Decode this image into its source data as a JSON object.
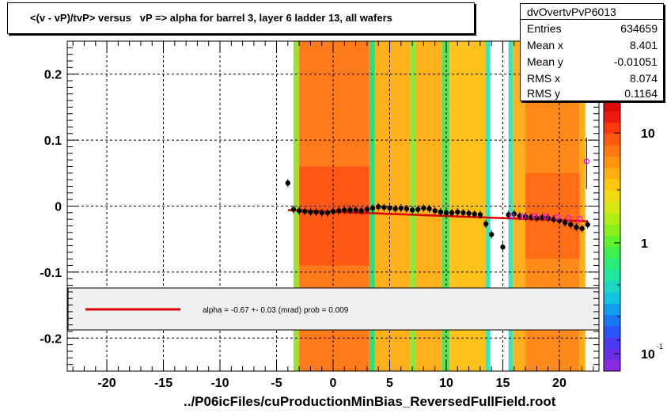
{
  "title": "<(v - vP)/tvP> versus   vP => alpha for barrel 3, layer 6 ladder 13, all wafers",
  "xlabel": "../P06icFiles/cuProductionMinBias_ReversedFullField.root",
  "stats": {
    "name": "dvOvertvPvP6013",
    "rows": [
      {
        "label": "Entries",
        "value": "634659"
      },
      {
        "label": "Mean x",
        "value": "8.401"
      },
      {
        "label": "Mean y",
        "value": "-0.01051"
      },
      {
        "label": "RMS x",
        "value": "8.074"
      },
      {
        "label": "RMS y",
        "value": "0.1164"
      }
    ]
  },
  "legend_text": "alpha =   -0.67 +-  0.03 (mrad) prob = 0.009",
  "colorbar_ticks": [
    "10",
    "1",
    "10"
  ],
  "colorbar_tick_exponent": "-1",
  "colors": {
    "fit_line": "#dd0000",
    "points": "#000000",
    "open_marker": "#ff00ff"
  },
  "chart_data": {
    "type": "scatter",
    "x_ticks": [
      "-20",
      "-15",
      "-10",
      "-5",
      "0",
      "5",
      "10",
      "15",
      "20"
    ],
    "y_ticks": [
      "0.2",
      "0.1",
      "0",
      "-0.1",
      "-0.2"
    ],
    "xlim": [
      -23.5,
      23.5
    ],
    "ylim": [
      -0.25,
      0.25
    ],
    "grid": true,
    "logz": true,
    "profile_points": [
      {
        "x": -4.0,
        "y": 0.035
      },
      {
        "x": -3.5,
        "y": -0.005
      },
      {
        "x": -3.0,
        "y": -0.007
      },
      {
        "x": -2.5,
        "y": -0.008
      },
      {
        "x": -2.0,
        "y": -0.009
      },
      {
        "x": -1.5,
        "y": -0.009
      },
      {
        "x": -1.0,
        "y": -0.01
      },
      {
        "x": -0.5,
        "y": -0.01
      },
      {
        "x": 0.0,
        "y": -0.008
      },
      {
        "x": 0.5,
        "y": -0.007
      },
      {
        "x": 1.0,
        "y": -0.006
      },
      {
        "x": 1.5,
        "y": -0.006
      },
      {
        "x": 2.0,
        "y": -0.006
      },
      {
        "x": 2.5,
        "y": -0.007
      },
      {
        "x": 3.0,
        "y": -0.005
      },
      {
        "x": 3.5,
        "y": -0.003
      },
      {
        "x": 4.0,
        "y": -0.001
      },
      {
        "x": 4.5,
        "y": -0.002
      },
      {
        "x": 5.0,
        "y": -0.003
      },
      {
        "x": 5.5,
        "y": -0.004
      },
      {
        "x": 6.0,
        "y": -0.003
      },
      {
        "x": 6.5,
        "y": -0.004
      },
      {
        "x": 7.0,
        "y": -0.006
      },
      {
        "x": 7.5,
        "y": -0.005
      },
      {
        "x": 8.0,
        "y": -0.003
      },
      {
        "x": 8.5,
        "y": -0.004
      },
      {
        "x": 9.0,
        "y": -0.007
      },
      {
        "x": 9.5,
        "y": -0.009
      },
      {
        "x": 10.0,
        "y": -0.01
      },
      {
        "x": 10.5,
        "y": -0.01
      },
      {
        "x": 11.0,
        "y": -0.009
      },
      {
        "x": 11.5,
        "y": -0.01
      },
      {
        "x": 12.0,
        "y": -0.011
      },
      {
        "x": 12.5,
        "y": -0.012
      },
      {
        "x": 13.0,
        "y": -0.013
      },
      {
        "x": 13.5,
        "y": -0.027
      },
      {
        "x": 14.0,
        "y": -0.043
      },
      {
        "x": 15.0,
        "y": -0.062
      },
      {
        "x": 15.5,
        "y": -0.013
      },
      {
        "x": 16.0,
        "y": -0.012
      },
      {
        "x": 16.5,
        "y": -0.015
      },
      {
        "x": 17.0,
        "y": -0.016
      },
      {
        "x": 17.5,
        "y": -0.017
      },
      {
        "x": 18.0,
        "y": -0.018
      },
      {
        "x": 18.5,
        "y": -0.017
      },
      {
        "x": 19.0,
        "y": -0.018
      },
      {
        "x": 19.5,
        "y": -0.02
      },
      {
        "x": 20.0,
        "y": -0.022
      },
      {
        "x": 20.5,
        "y": -0.025
      },
      {
        "x": 21.0,
        "y": -0.028
      },
      {
        "x": 21.5,
        "y": -0.032
      },
      {
        "x": 22.0,
        "y": -0.034
      },
      {
        "x": 22.5,
        "y": -0.028
      }
    ],
    "open_markers": [
      {
        "x": 15.8,
        "y": -0.015
      },
      {
        "x": 16.8,
        "y": -0.016
      },
      {
        "x": 17.8,
        "y": -0.015
      },
      {
        "x": 18.8,
        "y": -0.016
      },
      {
        "x": 19.8,
        "y": -0.017
      },
      {
        "x": 20.8,
        "y": -0.018
      },
      {
        "x": 21.8,
        "y": -0.019
      },
      {
        "x": 22.4,
        "y": 0.068
      }
    ],
    "fit_line": {
      "x": [
        -4.0,
        22.5
      ],
      "y": [
        -0.006,
        -0.023
      ]
    },
    "bands": [
      {
        "x0": -3.5,
        "x1": -3.0,
        "color": "#9ee02a"
      },
      {
        "x0": -3.0,
        "x1": 3.2,
        "color": "#ff7a1a"
      },
      {
        "x0": 3.2,
        "x1": 3.7,
        "color": "#2ee07a"
      },
      {
        "x0": 3.7,
        "x1": 6.8,
        "color": "#ffb01a"
      },
      {
        "x0": 6.8,
        "x1": 7.3,
        "color": "#8ee63a"
      },
      {
        "x0": 7.3,
        "x1": 9.6,
        "color": "#ffb01a"
      },
      {
        "x0": 9.6,
        "x1": 10.3,
        "color": "#5be05a"
      },
      {
        "x0": 10.3,
        "x1": 13.5,
        "color": "#ffc21a"
      },
      {
        "x0": 13.5,
        "x1": 13.9,
        "color": "#38e6c0"
      },
      {
        "x0": 15.5,
        "x1": 15.9,
        "color": "#38e6c0"
      },
      {
        "x0": 15.9,
        "x1": 17.0,
        "color": "#ffb01a"
      },
      {
        "x0": 17.0,
        "x1": 21.8,
        "color": "#ff8a1a"
      },
      {
        "x0": 21.8,
        "x1": 22.3,
        "color": "#ffb01a"
      }
    ]
  }
}
